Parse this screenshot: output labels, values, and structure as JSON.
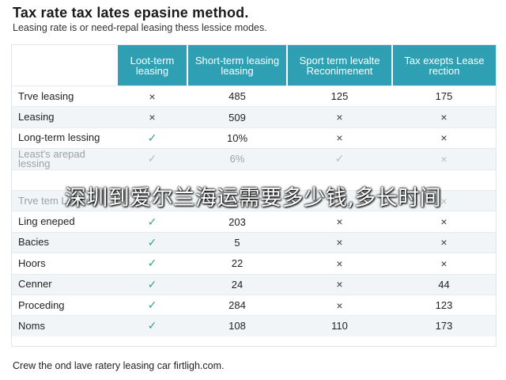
{
  "header": {
    "title": "Tax rate tax lates epasine method.",
    "subtitle": "Leasing rate is or need-repal leasing thess lessice modes."
  },
  "table": {
    "columns": [
      "",
      "Loot-term leasing",
      "Short-term leasing leasing",
      "Sport term levalte Reconimenent",
      "Tax exepts Lease rection"
    ],
    "rows": [
      {
        "label": "Trve leasing",
        "cells": [
          {
            "icon": "cross"
          },
          {
            "text": "485"
          },
          {
            "text": "125"
          },
          {
            "text": "175"
          }
        ]
      },
      {
        "label": "Leasing",
        "cells": [
          {
            "icon": "cross"
          },
          {
            "text": "509"
          },
          {
            "icon": "cross"
          },
          {
            "icon": "cross"
          }
        ]
      },
      {
        "label": "Long-term lessing",
        "cells": [
          {
            "icon": "check"
          },
          {
            "text": "10%"
          },
          {
            "icon": "cross"
          },
          {
            "icon": "cross"
          }
        ]
      },
      {
        "label": "Least's arepad lessing",
        "faded": true,
        "cells": [
          {
            "icon": "check"
          },
          {
            "text": "6%"
          },
          {
            "icon": "check"
          },
          {
            "icon": "cross"
          }
        ]
      },
      {
        "label": "",
        "faded": true,
        "cells": [
          {
            "text": ""
          },
          {
            "text": ""
          },
          {
            "text": ""
          },
          {
            "text": ""
          }
        ]
      },
      {
        "label": "Trve tem Leasing",
        "faded": true,
        "cells": [
          {
            "icon": "check"
          },
          {
            "text": "14"
          },
          {
            "icon": "cross"
          },
          {
            "icon": "cross"
          }
        ]
      },
      {
        "label": "Ling eneped",
        "cells": [
          {
            "icon": "check"
          },
          {
            "text": "203"
          },
          {
            "icon": "cross"
          },
          {
            "icon": "cross"
          }
        ]
      },
      {
        "label": "Bacies",
        "cells": [
          {
            "icon": "check"
          },
          {
            "text": "5"
          },
          {
            "icon": "cross"
          },
          {
            "icon": "cross"
          }
        ]
      },
      {
        "label": "Hoors",
        "cells": [
          {
            "icon": "check"
          },
          {
            "text": "22"
          },
          {
            "icon": "cross"
          },
          {
            "icon": "cross"
          }
        ]
      },
      {
        "label": "Cenner",
        "cells": [
          {
            "icon": "check"
          },
          {
            "text": "24"
          },
          {
            "icon": "cross"
          },
          {
            "text": "44"
          }
        ]
      },
      {
        "label": "Proceding",
        "cells": [
          {
            "icon": "check"
          },
          {
            "text": "284"
          },
          {
            "icon": "cross"
          },
          {
            "text": "123"
          }
        ]
      },
      {
        "label": "Noms",
        "cells": [
          {
            "icon": "check"
          },
          {
            "text": "108"
          },
          {
            "text": "110"
          },
          {
            "text": "173"
          }
        ]
      }
    ]
  },
  "overlay": {
    "text": "深圳到爱尔兰海运需要多少钱,多长时间"
  },
  "footer": {
    "text": "Crew the ond lave ratery leasing car firtligh.com."
  },
  "icons": {
    "check": "✓",
    "cross": "×"
  },
  "colors": {
    "header_bg": "#2f9fb4",
    "check": "#2aa58a"
  }
}
